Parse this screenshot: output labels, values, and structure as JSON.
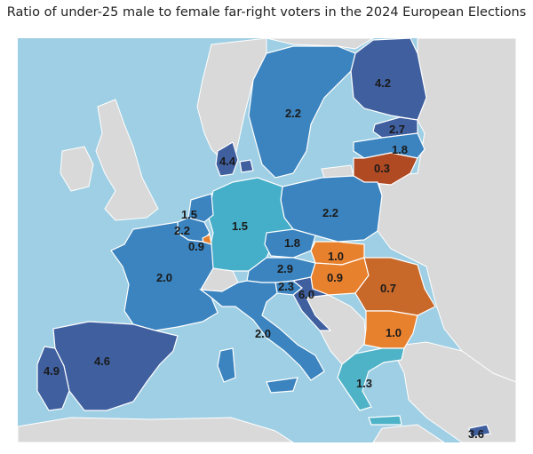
{
  "title": "Ratio of under-25 male to female far-right voters in the 2024 European Elections",
  "colors": {
    "sea": "#9fcfe4",
    "land_other": "#d9d9d9",
    "border": "#ffffff",
    "dark_blue": "#3f5f9f",
    "mid_blue": "#3b84bf",
    "light_blue": "#45aec8",
    "teal": "#4fb3c8",
    "orange": "#e8812e",
    "dark_orange": "#c8692a",
    "brown": "#b04a22"
  },
  "countries": [
    {
      "id": "finland",
      "value": "4.2",
      "color_key": "dark_blue"
    },
    {
      "id": "sweden",
      "value": "2.2",
      "color_key": "mid_blue"
    },
    {
      "id": "estonia",
      "value": "2.7",
      "color_key": "dark_blue"
    },
    {
      "id": "latvia",
      "value": "1.8",
      "color_key": "mid_blue"
    },
    {
      "id": "lithuania",
      "value": "0.3",
      "color_key": "brown"
    },
    {
      "id": "denmark",
      "value": "4.4",
      "color_key": "dark_blue"
    },
    {
      "id": "poland",
      "value": "2.2",
      "color_key": "mid_blue"
    },
    {
      "id": "germany",
      "value": "1.5",
      "color_key": "light_blue"
    },
    {
      "id": "netherlands",
      "value": "1.5",
      "color_key": "mid_blue"
    },
    {
      "id": "belgium",
      "value": "2.2",
      "color_key": "mid_blue"
    },
    {
      "id": "luxembourg",
      "value": "0.9",
      "color_key": "orange"
    },
    {
      "id": "czechia",
      "value": "1.8",
      "color_key": "mid_blue"
    },
    {
      "id": "slovakia",
      "value": "1.0",
      "color_key": "orange"
    },
    {
      "id": "austria",
      "value": "2.9",
      "color_key": "mid_blue"
    },
    {
      "id": "hungary",
      "value": "0.9",
      "color_key": "orange"
    },
    {
      "id": "romania",
      "value": "0.7",
      "color_key": "dark_orange"
    },
    {
      "id": "slovenia",
      "value": "2.3",
      "color_key": "mid_blue"
    },
    {
      "id": "croatia",
      "value": "6.0",
      "color_key": "dark_blue"
    },
    {
      "id": "bulgaria",
      "value": "1.0",
      "color_key": "orange"
    },
    {
      "id": "france",
      "value": "2.0",
      "color_key": "mid_blue"
    },
    {
      "id": "italy",
      "value": "2.0",
      "color_key": "mid_blue"
    },
    {
      "id": "spain",
      "value": "4.6",
      "color_key": "dark_blue"
    },
    {
      "id": "portugal",
      "value": "4.9",
      "color_key": "dark_blue"
    },
    {
      "id": "greece",
      "value": "1.3",
      "color_key": "teal"
    },
    {
      "id": "cyprus",
      "value": "3.6",
      "color_key": "dark_blue"
    }
  ]
}
